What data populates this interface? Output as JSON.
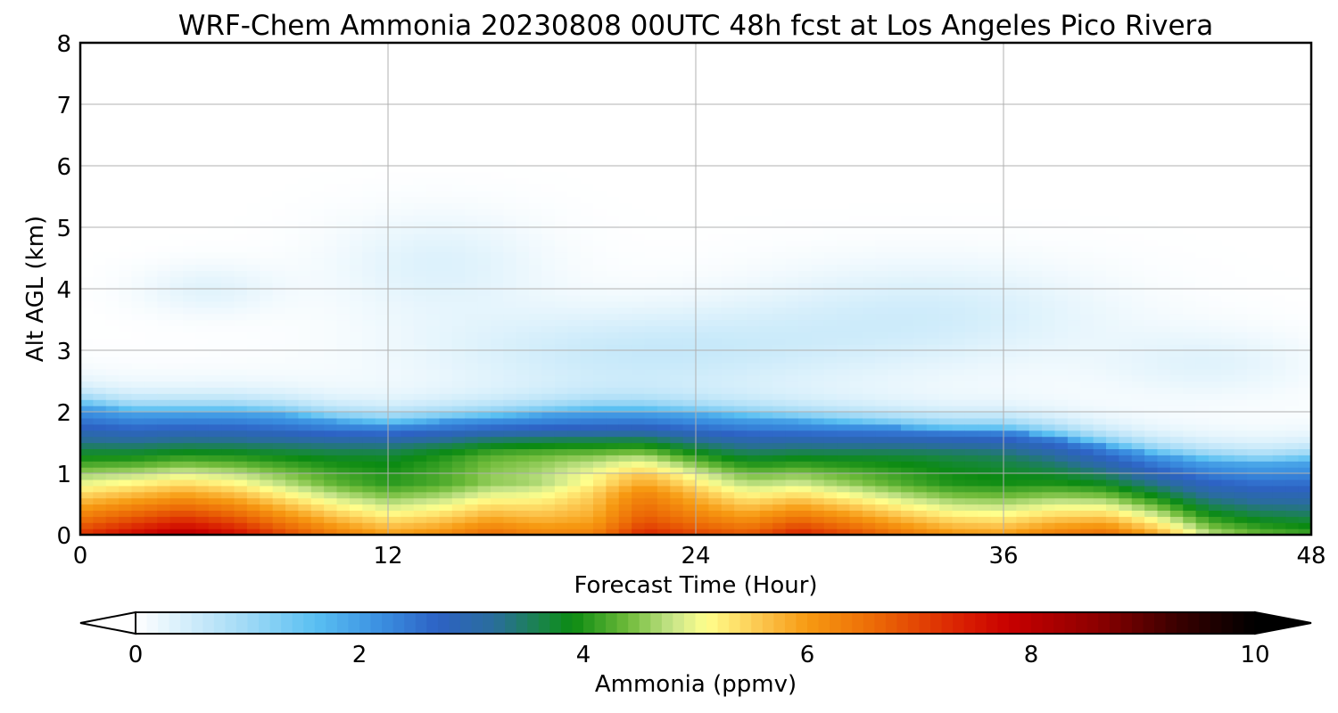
{
  "chart_data": {
    "type": "heatmap",
    "title": "WRF-Chem Ammonia  20230808 00UTC 48h fcst at Los Angeles Pico Rivera",
    "xlabel": "Forecast Time (Hour)",
    "ylabel": "Alt AGL (km)",
    "xlim": [
      0,
      48
    ],
    "ylim": [
      0,
      8
    ],
    "xticks": [
      "0",
      "12",
      "24",
      "36",
      "48"
    ],
    "yticks": [
      "0",
      "1",
      "2",
      "3",
      "4",
      "5",
      "6",
      "7",
      "8"
    ],
    "grid": true,
    "colorbar": {
      "label": "Ammonia  (ppmv)",
      "range": [
        0,
        10
      ],
      "ticks": [
        "0",
        "2",
        "4",
        "6",
        "8",
        "10"
      ],
      "extend": "both",
      "orientation": "horizontal",
      "placement": "bottom",
      "stops": [
        {
          "v": 0.0,
          "color": "#ffffff"
        },
        {
          "v": 1.0,
          "color": "#9fd9f6"
        },
        {
          "v": 1.6,
          "color": "#5ac0f2"
        },
        {
          "v": 2.2,
          "color": "#3a8ee0"
        },
        {
          "v": 2.7,
          "color": "#2d62c4"
        },
        {
          "v": 3.2,
          "color": "#2a6d9c"
        },
        {
          "v": 3.7,
          "color": "#16883a"
        },
        {
          "v": 3.9,
          "color": "#0b8a12"
        },
        {
          "v": 4.4,
          "color": "#6fbb3a"
        },
        {
          "v": 4.8,
          "color": "#c8e58a"
        },
        {
          "v": 5.1,
          "color": "#ffff8c"
        },
        {
          "v": 5.6,
          "color": "#fcc44c"
        },
        {
          "v": 6.0,
          "color": "#f79a12"
        },
        {
          "v": 6.6,
          "color": "#ec6a06"
        },
        {
          "v": 7.4,
          "color": "#d91e02"
        },
        {
          "v": 7.8,
          "color": "#c80000"
        },
        {
          "v": 8.6,
          "color": "#8c0000"
        },
        {
          "v": 9.3,
          "color": "#3a0000"
        },
        {
          "v": 10.0,
          "color": "#000000"
        }
      ],
      "under_color": "#ffffff",
      "over_color": "#000000"
    },
    "field_description_keypoints": {
      "hours": [
        0,
        2,
        4,
        6,
        8,
        10,
        12,
        14,
        16,
        18,
        20,
        22,
        24,
        26,
        28,
        30,
        32,
        34,
        36,
        38,
        40,
        42,
        44,
        46,
        48
      ],
      "surface_ppmv": [
        7.2,
        7.7,
        8.1,
        7.7,
        7.0,
        6.4,
        6.0,
        6.2,
        6.6,
        6.3,
        6.3,
        7.3,
        7.0,
        6.8,
        7.4,
        7.0,
        6.5,
        6.1,
        6.0,
        6.4,
        6.6,
        5.9,
        4.8,
        4.4,
        4.2
      ],
      "boundary_layer_top_km": [
        2.1,
        2.0,
        2.0,
        2.0,
        1.95,
        1.85,
        1.8,
        1.85,
        1.9,
        1.95,
        2.0,
        2.0,
        1.95,
        1.9,
        1.85,
        1.8,
        1.75,
        1.7,
        1.7,
        1.6,
        1.45,
        1.3,
        1.2,
        1.15,
        1.2
      ]
    }
  }
}
